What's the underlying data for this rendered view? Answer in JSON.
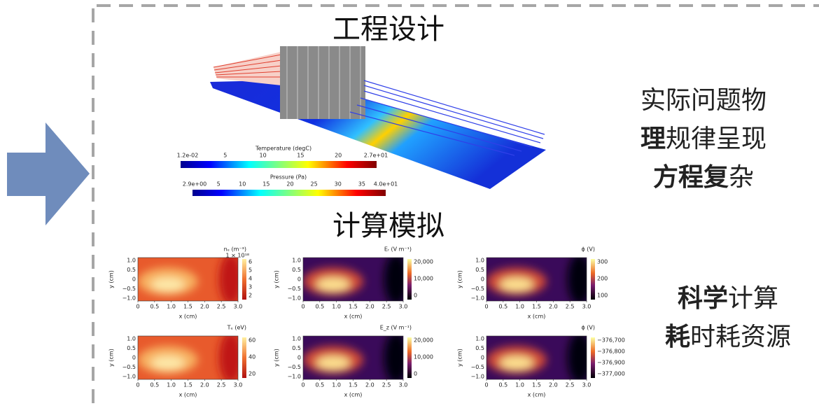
{
  "engineering": {
    "heading": "工程设计",
    "temperature": {
      "title": "Temperature (degC)",
      "ticks": [
        "1.2e-02",
        "5",
        "10",
        "15",
        "20",
        "2.7e+01"
      ]
    },
    "pressure": {
      "title": "Pressure (Pa)",
      "ticks": [
        "2.9e+00",
        "5",
        "10",
        "15",
        "20",
        "25",
        "30",
        "35",
        "4.0e+01"
      ]
    }
  },
  "simulation": {
    "heading": "计算模拟",
    "xlabel": "x (cm)",
    "ylabel": "y (cm)",
    "xticks": [
      "0",
      "0.5",
      "1.0",
      "1.5",
      "2.0",
      "2.5",
      "3.0"
    ],
    "yticks": [
      "1.0",
      "0.5",
      "0",
      "−0.5",
      "−1.0"
    ],
    "panels": [
      {
        "title": "nₑ (m⁻³)",
        "scale": "1 × 10¹⁸",
        "cbar_ticks": [
          "6",
          "5",
          "4",
          "3",
          "2"
        ],
        "colormap": "hot"
      },
      {
        "title": "Eᵣ (V m⁻¹)",
        "cbar_ticks": [
          "20,000",
          "10,000",
          "0"
        ],
        "colormap": "inferno"
      },
      {
        "title": "ϕ (V)",
        "cbar_ticks": [
          "300",
          "200",
          "100"
        ],
        "colormap": "inferno"
      },
      {
        "title": "Tₑ (eV)",
        "cbar_ticks": [
          "60",
          "40",
          "20"
        ],
        "colormap": "hot"
      },
      {
        "title": "E_z (V m⁻¹)",
        "cbar_ticks": [
          "20,000",
          "10,000",
          "0"
        ],
        "colormap": "inferno"
      },
      {
        "title": "ϕ (V)",
        "cbar_ticks": [
          "−376,700",
          "−376,800",
          "−376,900",
          "−377,000"
        ],
        "colormap": "inferno"
      }
    ]
  },
  "notes": [
    {
      "lines": [
        [
          {
            "text": "实际问题物",
            "bold": false
          }
        ],
        [
          {
            "text": "理",
            "bold": true
          },
          {
            "text": "规律呈现",
            "bold": false
          }
        ],
        [
          {
            "text": "方程复",
            "bold": true
          },
          {
            "text": "杂",
            "bold": false
          }
        ]
      ]
    },
    {
      "lines": [
        [
          {
            "text": "科学",
            "bold": true
          },
          {
            "text": "计算",
            "bold": false
          }
        ],
        [
          {
            "text": "耗",
            "bold": true
          },
          {
            "text": "时耗资源",
            "bold": false
          }
        ]
      ]
    }
  ]
}
